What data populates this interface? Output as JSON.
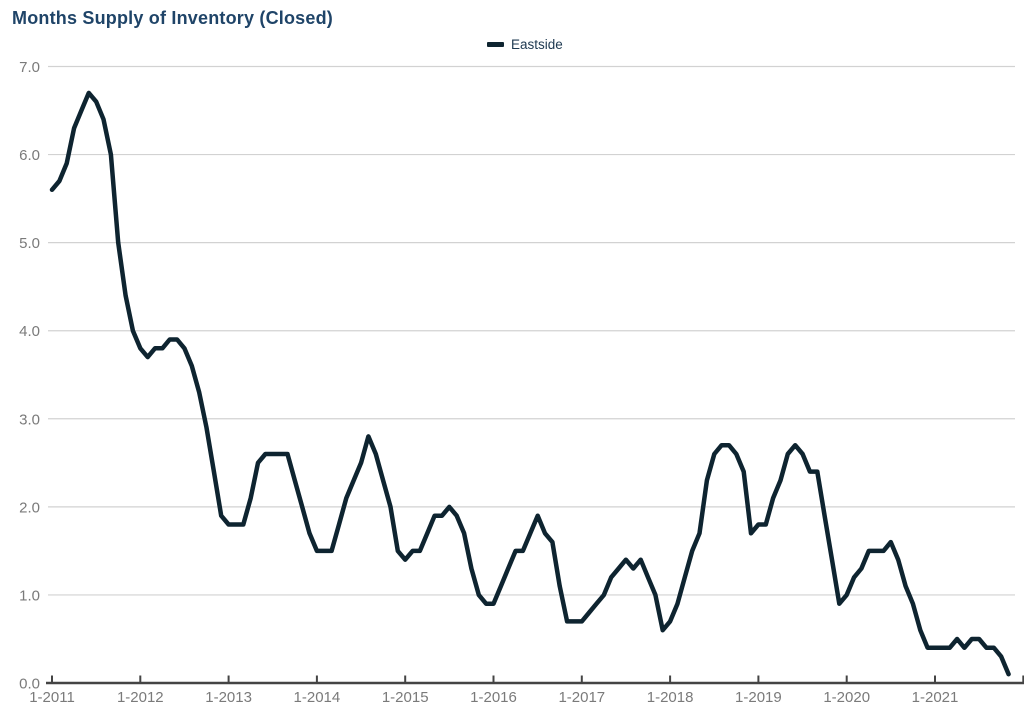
{
  "page": {
    "title": "Months Supply of Inventory (Closed)"
  },
  "legend": {
    "label": "Eastside"
  },
  "colors": {
    "title_text": "#1F4468",
    "line": "#0E2430",
    "grid": "#D2D2D2",
    "axis": "#444444",
    "tick_label": "#7A7A7A",
    "background": "#FFFFFF"
  },
  "chart_data": {
    "type": "line",
    "title": "Months Supply of Inventory (Closed)",
    "legend_entries": [
      "Eastside"
    ],
    "legend_position": "top-center",
    "grid": "horizontal-only",
    "x_start": "1-2011",
    "x_end": "11-2021",
    "x_interval": "monthly",
    "x_tick_labels": [
      "1-2011",
      "1-2012",
      "1-2013",
      "1-2014",
      "1-2015",
      "1-2016",
      "1-2017",
      "1-2018",
      "1-2019",
      "1-2020",
      "1-2021"
    ],
    "y_tick_labels": [
      "0.0",
      "1.0",
      "2.0",
      "3.0",
      "4.0",
      "5.0",
      "6.0",
      "7.0"
    ],
    "ylim": [
      0,
      7
    ],
    "series": [
      {
        "name": "Eastside",
        "color": "#0E2430",
        "values": [
          5.6,
          5.7,
          5.9,
          6.3,
          6.5,
          6.7,
          6.6,
          6.4,
          6.0,
          5.0,
          4.4,
          4.0,
          3.8,
          3.7,
          3.8,
          3.8,
          3.9,
          3.9,
          3.8,
          3.6,
          3.3,
          2.9,
          2.4,
          1.9,
          1.8,
          1.8,
          1.8,
          2.1,
          2.5,
          2.6,
          2.6,
          2.6,
          2.6,
          2.3,
          2.0,
          1.7,
          1.5,
          1.5,
          1.5,
          1.8,
          2.1,
          2.3,
          2.5,
          2.8,
          2.6,
          2.3,
          2.0,
          1.5,
          1.4,
          1.5,
          1.5,
          1.7,
          1.9,
          1.9,
          2.0,
          1.9,
          1.7,
          1.3,
          1.0,
          0.9,
          0.9,
          1.1,
          1.3,
          1.5,
          1.5,
          1.7,
          1.9,
          1.7,
          1.6,
          1.1,
          0.7,
          0.7,
          0.7,
          0.8,
          0.9,
          1.0,
          1.2,
          1.3,
          1.4,
          1.3,
          1.4,
          1.2,
          1.0,
          0.6,
          0.7,
          0.9,
          1.2,
          1.5,
          1.7,
          2.3,
          2.6,
          2.7,
          2.7,
          2.6,
          2.4,
          1.7,
          1.8,
          1.8,
          2.1,
          2.3,
          2.6,
          2.7,
          2.6,
          2.4,
          2.4,
          1.9,
          1.4,
          0.9,
          1.0,
          1.2,
          1.3,
          1.5,
          1.5,
          1.5,
          1.6,
          1.4,
          1.1,
          0.9,
          0.6,
          0.4,
          0.4,
          0.4,
          0.4,
          0.5,
          0.4,
          0.5,
          0.5,
          0.4,
          0.4,
          0.3,
          0.1
        ]
      }
    ]
  }
}
